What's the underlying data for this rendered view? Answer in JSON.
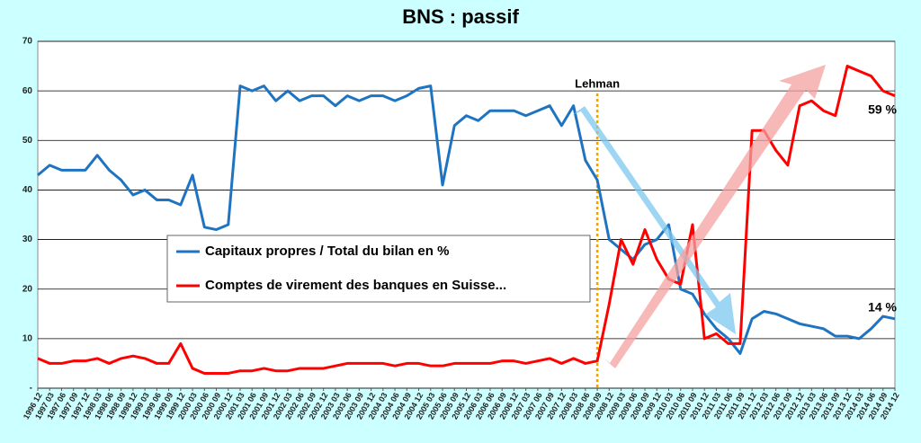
{
  "chart_data": {
    "type": "line",
    "title": "BNS : passif",
    "categories": [
      "1996 12",
      "1997 03",
      "1997 06",
      "1997 09",
      "1997 12",
      "1998 03",
      "1998 06",
      "1998 09",
      "1998 12",
      "1999 03",
      "1999 06",
      "1999 09",
      "1999 12",
      "2000 03",
      "2000 06",
      "2000 09",
      "2000 12",
      "2001 03",
      "2001 06",
      "2001 09",
      "2001 12",
      "2002 03",
      "2002 06",
      "2002 09",
      "2002 12",
      "2003 03",
      "2003 06",
      "2003 09",
      "2003 12",
      "2004 03",
      "2004 06",
      "2004 09",
      "2004 12",
      "2005 03",
      "2005 06",
      "2005 09",
      "2005 12",
      "2006 03",
      "2006 06",
      "2006 09",
      "2006 12",
      "2007 03",
      "2007 06",
      "2007 09",
      "2007 12",
      "2008 03",
      "2008 06",
      "2008 09",
      "2008 12",
      "2009 03",
      "2009 06",
      "2009 09",
      "2009 12",
      "2010 03",
      "2010 06",
      "2010 09",
      "2010 12",
      "2011 03",
      "2011 06",
      "2011 09",
      "2011 12",
      "2012 03",
      "2012 06",
      "2012 09",
      "2012 12",
      "2013 03",
      "2013 06",
      "2013 09",
      "2013 12",
      "2014 03",
      "2014 06",
      "2014 09",
      "2014 12"
    ],
    "series": [
      {
        "name": "Capitaux propres / Total du bilan en %",
        "color": "#1f74c1",
        "end_label": "14 %",
        "values": [
          43,
          45,
          44,
          44,
          44,
          47,
          44,
          42,
          39,
          40,
          38,
          38,
          37,
          43,
          32.5,
          32,
          33,
          61,
          60,
          61,
          58,
          60,
          58,
          59,
          59,
          57,
          59,
          58,
          59,
          59,
          58,
          59,
          60.5,
          61,
          41,
          53,
          55,
          54,
          56,
          56,
          56,
          55,
          56,
          57,
          53,
          57,
          46,
          42,
          30,
          28,
          26,
          29,
          30,
          33,
          20,
          19,
          15,
          12,
          10,
          7,
          14,
          15.5,
          15,
          14,
          13,
          12.5,
          12,
          10.5,
          10.5,
          10,
          12,
          14.5,
          14
        ]
      },
      {
        "name": "Comptes de virement des banques en Suisse...",
        "color": "#ff0000",
        "end_label": "59 %",
        "values": [
          6,
          5,
          5,
          5.5,
          5.5,
          6,
          5,
          6,
          6.5,
          6,
          5,
          5,
          9,
          4,
          3,
          3,
          3,
          3.5,
          3.5,
          4,
          3.5,
          3.5,
          4,
          4,
          4,
          4.5,
          5,
          5,
          5,
          5,
          4.5,
          5,
          5,
          4.5,
          4.5,
          5,
          5,
          5,
          5,
          5.5,
          5.5,
          5,
          5.5,
          6,
          5,
          6,
          5,
          5.5,
          17,
          30,
          25,
          32,
          26,
          22,
          21,
          33,
          10,
          11,
          9,
          9,
          52,
          52,
          48,
          45,
          57,
          58,
          56,
          55,
          65,
          64,
          63,
          60,
          59
        ]
      }
    ],
    "annotations": [
      {
        "text": "Lehman",
        "x": "2008 09"
      }
    ],
    "ylim": [
      0,
      70
    ],
    "yticks": [
      {
        "value": 0,
        "label": "-"
      },
      10,
      20,
      30,
      40,
      50,
      60,
      70
    ],
    "grid": true
  }
}
